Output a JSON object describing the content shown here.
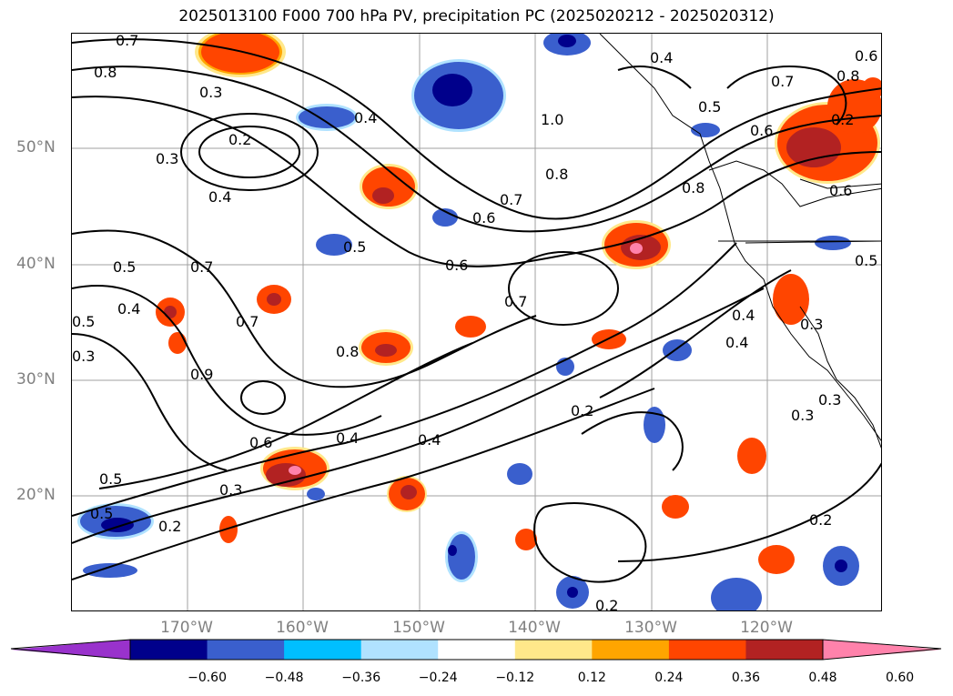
{
  "title": "2025013100 F000 700 hPa PV, precipitation PC (2025020212 - 2025020312)",
  "map": {
    "lat_labels": [
      "50°N",
      "40°N",
      "30°N",
      "20°N"
    ],
    "lon_labels": [
      "170°W",
      "160°W",
      "150°W",
      "140°W",
      "130°W",
      "120°W"
    ],
    "gridlines": true,
    "contour_labels": [
      "0.7",
      "0.8",
      "0.3",
      "0.2",
      "0.3",
      "0.4",
      "0.5",
      "0.4",
      "0.4",
      "0.5",
      "0.7",
      "0.6",
      "0.7",
      "0.8",
      "0.6",
      "0.7",
      "0.8",
      "1.0",
      "0.4",
      "0.6",
      "0.8",
      "0.9",
      "0.7",
      "0.5",
      "0.6",
      "0.5",
      "0.4",
      "0.3",
      "0.7",
      "0.8",
      "0.6",
      "0.6",
      "0.4",
      "0.3",
      "0.2",
      "0.5",
      "0.2",
      "0.2",
      "0.3",
      "0.4",
      "0.5",
      "0.2",
      "0.3",
      "0.2",
      "0.3",
      "0.5",
      "0.4"
    ]
  },
  "colorbar": {
    "ticks": [
      "−0.60",
      "−0.48",
      "−0.36",
      "−0.24",
      "−0.12",
      "0.12",
      "0.24",
      "0.36",
      "0.48",
      "0.60"
    ],
    "colors": [
      "#9932cc",
      "#00008b",
      "#3a5fcd",
      "#00bfff",
      "#b0e2ff",
      "#ffffff",
      "#ffe88a",
      "#ffa500",
      "#ff4500",
      "#b22222",
      "#ff82ab"
    ],
    "extend": "both"
  }
}
